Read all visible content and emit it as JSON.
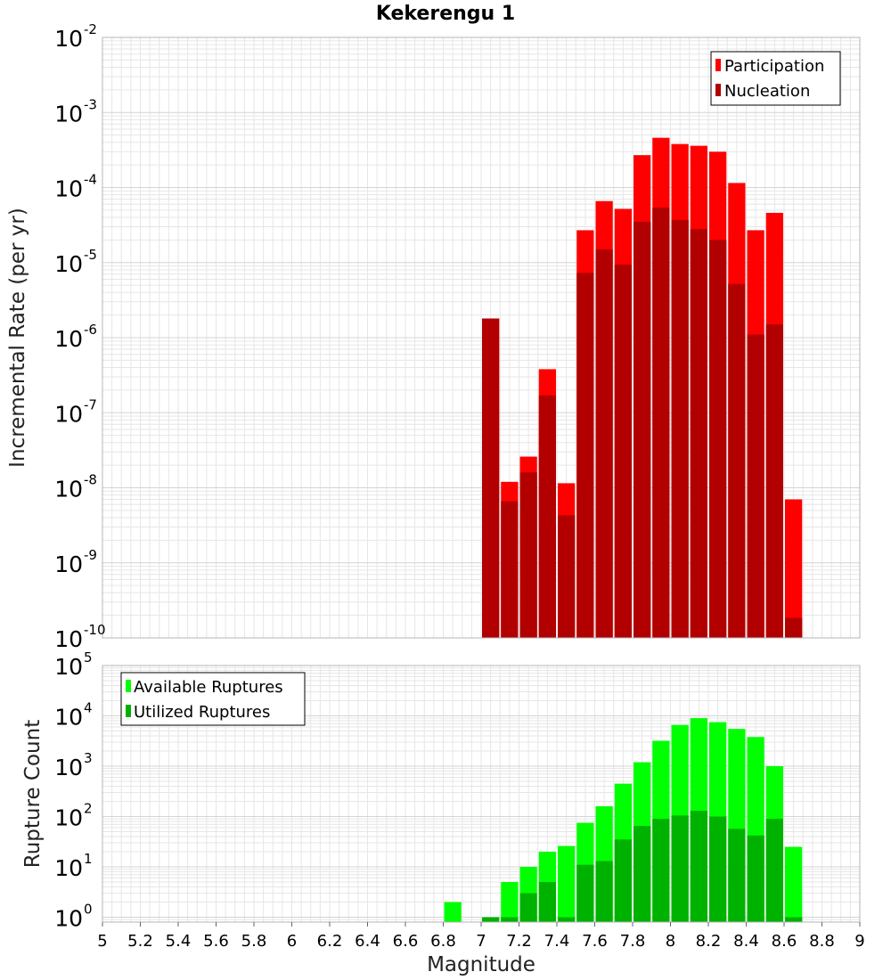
{
  "chart_data": [
    {
      "type": "bar",
      "title": "Kekerengu 1",
      "xlabel": "",
      "ylabel": "Incremental Rate (per yr)",
      "yscale": "log",
      "ylim": [
        1e-10,
        0.01
      ],
      "xlim": [
        5,
        9
      ],
      "grid": true,
      "legend_position": "top-right",
      "categories": [
        7.05,
        7.15,
        7.25,
        7.35,
        7.45,
        7.55,
        7.65,
        7.75,
        7.85,
        7.95,
        8.05,
        8.15,
        8.25,
        8.35,
        8.45,
        8.55,
        8.65
      ],
      "series": [
        {
          "name": "Participation",
          "color": "#ff0000",
          "values": [
            1.8e-06,
            1.2e-08,
            2.6e-08,
            3.8e-07,
            1.15e-08,
            2.7e-05,
            6.6e-05,
            5.2e-05,
            0.00027,
            0.00046,
            0.00038,
            0.00036,
            0.0003,
            0.000115,
            2.7e-05,
            4.6e-05,
            7e-09
          ]
        },
        {
          "name": "Nucleation",
          "color": "#b20000",
          "values": [
            1.8e-06,
            6.6e-09,
            1.6e-08,
            1.7e-07,
            4.3e-09,
            7.3e-06,
            1.5e-05,
            9.4e-06,
            3.5e-05,
            5.4e-05,
            3.7e-05,
            2.8e-05,
            2e-05,
            5.2e-06,
            1.1e-06,
            1.5e-06,
            1.85e-10
          ]
        }
      ]
    },
    {
      "type": "bar",
      "title": "",
      "xlabel": "Magnitude",
      "ylabel": "Rupture Count",
      "yscale": "log",
      "ylim": [
        0.8,
        100000.0
      ],
      "xlim": [
        5,
        9
      ],
      "grid": true,
      "legend_position": "top-left",
      "categories": [
        6.85,
        7.05,
        7.15,
        7.25,
        7.35,
        7.45,
        7.55,
        7.65,
        7.75,
        7.85,
        7.95,
        8.05,
        8.15,
        8.25,
        8.35,
        8.45,
        8.55,
        8.65
      ],
      "series": [
        {
          "name": "Available Ruptures",
          "color": "#00ff00",
          "values": [
            2,
            1,
            5,
            10,
            20,
            26,
            75,
            160,
            450,
            1200,
            3200,
            6600,
            9000,
            7500,
            5500,
            3800,
            1000,
            25
          ]
        },
        {
          "name": "Utilized Ruptures",
          "color": "#00b200",
          "values": [
            0,
            1,
            1,
            3,
            5,
            1,
            11,
            13,
            35,
            65,
            90,
            105,
            130,
            100,
            57,
            42,
            90,
            1
          ]
        }
      ]
    }
  ],
  "x_ticks": [
    "5",
    "5.2",
    "5.4",
    "5.6",
    "5.8",
    "6",
    "6.2",
    "6.4",
    "6.6",
    "6.8",
    "7",
    "7.2",
    "7.4",
    "7.6",
    "7.8",
    "8",
    "8.2",
    "8.4",
    "8.6",
    "8.8",
    "9"
  ],
  "top_y_ticks": [
    {
      "base": "10",
      "exp": "-2"
    },
    {
      "base": "10",
      "exp": "-3"
    },
    {
      "base": "10",
      "exp": "-4"
    },
    {
      "base": "10",
      "exp": "-5"
    },
    {
      "base": "10",
      "exp": "-6"
    },
    {
      "base": "10",
      "exp": "-7"
    },
    {
      "base": "10",
      "exp": "-8"
    },
    {
      "base": "10",
      "exp": "-9"
    },
    {
      "base": "10",
      "exp": "-10"
    }
  ],
  "bottom_y_ticks": [
    {
      "base": "10",
      "exp": "5"
    },
    {
      "base": "10",
      "exp": "4"
    },
    {
      "base": "10",
      "exp": "3"
    },
    {
      "base": "10",
      "exp": "2"
    },
    {
      "base": "10",
      "exp": "1"
    },
    {
      "base": "10",
      "exp": "0"
    }
  ],
  "colors": {
    "grid": "#e6e6e6",
    "frame": "#b4b4b4",
    "bar_separator": "#ffffff"
  }
}
